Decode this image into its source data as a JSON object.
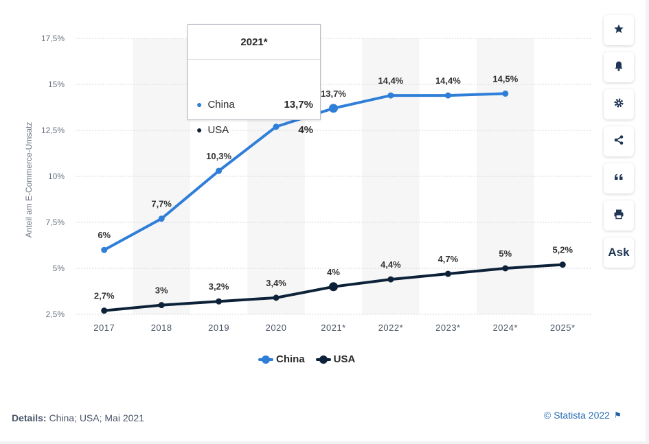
{
  "chart_data": {
    "type": "line",
    "categories": [
      "2017",
      "2018",
      "2019",
      "2020",
      "2021*",
      "2022*",
      "2023*",
      "2024*",
      "2025*"
    ],
    "series": [
      {
        "name": "China",
        "color": "#2f7ed8",
        "values": [
          6.0,
          7.7,
          10.3,
          12.7,
          13.7,
          14.4,
          14.4,
          14.5,
          null
        ],
        "labels": [
          "6%",
          "7,7%",
          "10,3%",
          "",
          "13,7%",
          "14,4%",
          "14,4%",
          "14,5%",
          ""
        ]
      },
      {
        "name": "USA",
        "color": "#0d2238",
        "values": [
          2.7,
          3.0,
          3.2,
          3.4,
          4.0,
          4.4,
          4.7,
          5.0,
          5.2
        ],
        "labels": [
          "2,7%",
          "3%",
          "3,2%",
          "3,4%",
          "4%",
          "4,4%",
          "4,7%",
          "5%",
          "5,2%"
        ]
      }
    ],
    "ylabel": "Anteil am E-Commerce-Umsatz",
    "xlabel": "",
    "ylim": [
      2.5,
      17.5
    ],
    "yticks": [
      {
        "value": 2.5,
        "label": "2,5%"
      },
      {
        "value": 5,
        "label": "5%"
      },
      {
        "value": 7.5,
        "label": "7,5%"
      },
      {
        "value": 10,
        "label": "10%"
      },
      {
        "value": 12.5,
        "label": "12,5%"
      },
      {
        "value": 15,
        "label": "15%"
      },
      {
        "value": 17.5,
        "label": "17,5%"
      }
    ],
    "grid": true,
    "legend_position": "bottom-center"
  },
  "tooltip": {
    "title": "2021*",
    "rows": [
      {
        "name": "China",
        "value": "13,7%",
        "color": "#2f7ed8"
      },
      {
        "name": "USA",
        "value": "4%",
        "color": "#0d2238"
      }
    ]
  },
  "legend": {
    "china": "China",
    "usa": "USA"
  },
  "footer": {
    "details_label": "Details:",
    "details_text": " China; USA; Mai 2021",
    "source": "© Statista 2022"
  },
  "toolbar": {
    "ask_label": "Ask",
    "icons": [
      "star-icon",
      "bell-icon",
      "gear-icon",
      "share-icon",
      "quote-icon",
      "print-icon"
    ]
  }
}
